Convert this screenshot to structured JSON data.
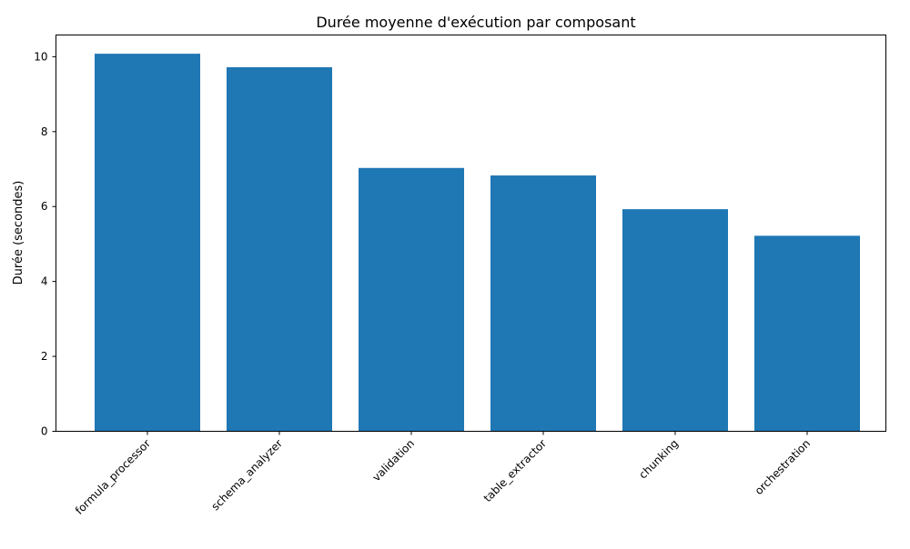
{
  "chart_data": {
    "type": "bar",
    "title": "Durée moyenne d'exécution par composant",
    "xlabel": "",
    "ylabel": "Durée (secondes)",
    "categories": [
      "formula_processor",
      "schema_analyzer",
      "validation",
      "table_extractor",
      "chunking",
      "orchestration"
    ],
    "values": [
      10.08,
      9.72,
      7.03,
      6.83,
      5.93,
      5.22
    ],
    "ylim": [
      0,
      10.58
    ],
    "yticks": [
      0,
      2,
      4,
      6,
      8,
      10
    ],
    "bar_color": "#1f77b4",
    "grid": false,
    "legend": "none"
  }
}
